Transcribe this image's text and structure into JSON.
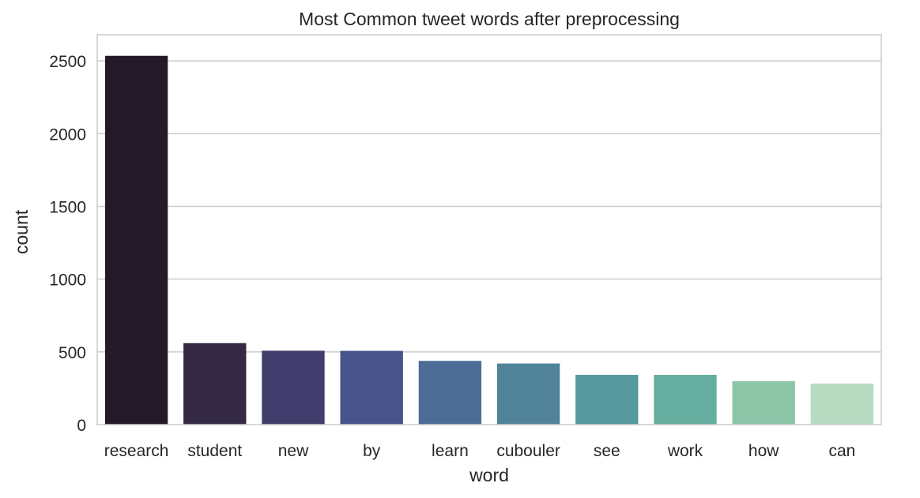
{
  "chart_data": {
    "type": "bar",
    "title": "Most Common tweet words after preprocessing",
    "xlabel": "word",
    "ylabel": "count",
    "categories": [
      "research",
      "student",
      "new",
      "by",
      "learn",
      "cubouler",
      "see",
      "work",
      "how",
      "can"
    ],
    "values": [
      2535,
      560,
      508,
      507,
      438,
      420,
      342,
      342,
      298,
      282
    ],
    "colors": [
      "#241927",
      "#342a44",
      "#413d6c",
      "#48548b",
      "#4c6c95",
      "#50839a",
      "#56999e",
      "#66ae9f",
      "#8cc4a8",
      "#b7dbc1"
    ],
    "ylim": [
      0,
      2680
    ],
    "yticks": [
      0,
      500,
      1000,
      1500,
      2000,
      2500
    ],
    "grid": true,
    "legend": "none"
  }
}
